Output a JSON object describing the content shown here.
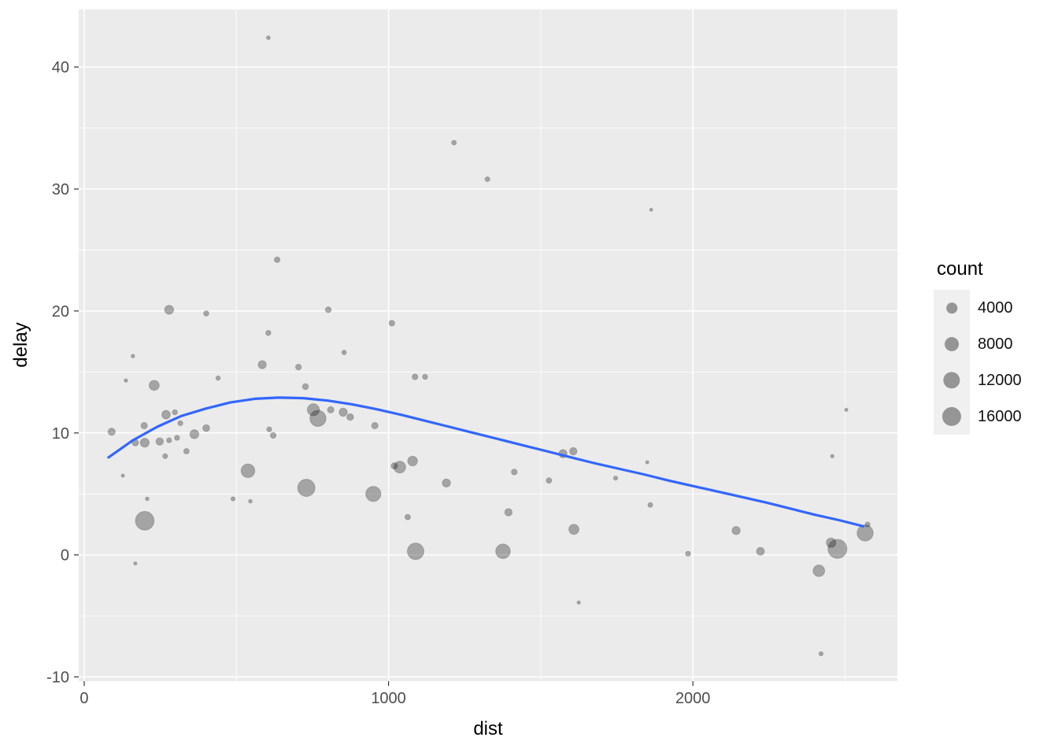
{
  "chart_data": {
    "type": "scatter",
    "title": "",
    "xlabel": "dist",
    "ylabel": "delay",
    "xlim": [
      -18,
      2672
    ],
    "ylim": [
      -10.35,
      44.72
    ],
    "grid": true,
    "x_ticks": [
      {
        "v": 0,
        "label": "0"
      },
      {
        "v": 1000,
        "label": "1000"
      },
      {
        "v": 2000,
        "label": "2000"
      }
    ],
    "y_ticks": [
      {
        "v": -10,
        "label": "-10"
      },
      {
        "v": 0,
        "label": "0"
      },
      {
        "v": 10,
        "label": "10"
      },
      {
        "v": 20,
        "label": "20"
      },
      {
        "v": 30,
        "label": "30"
      },
      {
        "v": 40,
        "label": "40"
      }
    ],
    "x_minor": [
      500,
      1500,
      2500
    ],
    "y_minor": [
      -5,
      5,
      15,
      25,
      35
    ],
    "legend": {
      "title": "count",
      "position": "right",
      "items": [
        {
          "label": "4000",
          "count": 4000
        },
        {
          "label": "8000",
          "count": 8000
        },
        {
          "label": "12000",
          "count": 12000
        },
        {
          "label": "16000",
          "count": 16000
        }
      ]
    },
    "size_scale": {
      "count_min": 25,
      "count_max": 17300,
      "radius_min_px": 1.9,
      "radius_max_px": 12.5
    },
    "points": [
      {
        "dist": 605,
        "delay": 42.4,
        "count": 120
      },
      {
        "dist": 1215,
        "delay": 33.8,
        "count": 320
      },
      {
        "dist": 1325,
        "delay": 30.8,
        "count": 370
      },
      {
        "dist": 1863,
        "delay": 28.3,
        "count": 30
      },
      {
        "dist": 634,
        "delay": 24.2,
        "count": 630
      },
      {
        "dist": 279,
        "delay": 20.1,
        "count": 2600
      },
      {
        "dist": 401,
        "delay": 19.8,
        "count": 500
      },
      {
        "dist": 802,
        "delay": 20.1,
        "count": 700
      },
      {
        "dist": 1011,
        "delay": 19.0,
        "count": 700
      },
      {
        "dist": 605,
        "delay": 18.2,
        "count": 450
      },
      {
        "dist": 854,
        "delay": 16.6,
        "count": 300
      },
      {
        "dist": 160,
        "delay": 16.3,
        "count": 100
      },
      {
        "dist": 585,
        "delay": 15.6,
        "count": 2000
      },
      {
        "dist": 704,
        "delay": 15.4,
        "count": 700
      },
      {
        "dist": 1120,
        "delay": 14.6,
        "count": 450
      },
      {
        "dist": 1087,
        "delay": 14.6,
        "count": 700
      },
      {
        "dist": 137,
        "delay": 14.3,
        "count": 80
      },
      {
        "dist": 440,
        "delay": 14.5,
        "count": 250
      },
      {
        "dist": 230,
        "delay": 13.9,
        "count": 3500
      },
      {
        "dist": 727,
        "delay": 13.8,
        "count": 800
      },
      {
        "dist": 810,
        "delay": 11.9,
        "count": 1000
      },
      {
        "dist": 753,
        "delay": 11.9,
        "count": 5500
      },
      {
        "dist": 768,
        "delay": 11.2,
        "count": 11000
      },
      {
        "dist": 851,
        "delay": 11.7,
        "count": 2000
      },
      {
        "dist": 874,
        "delay": 11.3,
        "count": 1100
      },
      {
        "dist": 269,
        "delay": 11.5,
        "count": 2200
      },
      {
        "dist": 298,
        "delay": 11.7,
        "count": 450
      },
      {
        "dist": 316,
        "delay": 10.8,
        "count": 420
      },
      {
        "dist": 955,
        "delay": 10.6,
        "count": 1000
      },
      {
        "dist": 90,
        "delay": 10.1,
        "count": 1400
      },
      {
        "dist": 197,
        "delay": 10.6,
        "count": 1000
      },
      {
        "dist": 362,
        "delay": 9.9,
        "count": 2500
      },
      {
        "dist": 401,
        "delay": 10.4,
        "count": 1200
      },
      {
        "dist": 608,
        "delay": 10.3,
        "count": 420
      },
      {
        "dist": 621,
        "delay": 9.8,
        "count": 700
      },
      {
        "dist": 199,
        "delay": 9.2,
        "count": 2500
      },
      {
        "dist": 248,
        "delay": 9.3,
        "count": 1500
      },
      {
        "dist": 279,
        "delay": 9.4,
        "count": 420
      },
      {
        "dist": 305,
        "delay": 9.6,
        "count": 460
      },
      {
        "dist": 168,
        "delay": 9.2,
        "count": 1000
      },
      {
        "dist": 336,
        "delay": 8.5,
        "count": 600
      },
      {
        "dist": 266,
        "delay": 8.1,
        "count": 400
      },
      {
        "dist": 2504,
        "delay": 11.9,
        "count": 60
      },
      {
        "dist": 1573,
        "delay": 8.3,
        "count": 2000
      },
      {
        "dist": 1607,
        "delay": 8.5,
        "count": 1500
      },
      {
        "dist": 2458,
        "delay": 8.1,
        "count": 80
      },
      {
        "dist": 1079,
        "delay": 7.7,
        "count": 3200
      },
      {
        "dist": 1037,
        "delay": 7.2,
        "count": 5200
      },
      {
        "dist": 1019,
        "delay": 7.3,
        "count": 1000
      },
      {
        "dist": 538,
        "delay": 6.9,
        "count": 7500
      },
      {
        "dist": 127,
        "delay": 6.5,
        "count": 60
      },
      {
        "dist": 1413,
        "delay": 6.8,
        "count": 700
      },
      {
        "dist": 1190,
        "delay": 5.9,
        "count": 2000
      },
      {
        "dist": 1746,
        "delay": 6.3,
        "count": 200
      },
      {
        "dist": 1850,
        "delay": 7.6,
        "count": 60
      },
      {
        "dist": 730,
        "delay": 5.5,
        "count": 13000
      },
      {
        "dist": 950,
        "delay": 5.0,
        "count": 9500
      },
      {
        "dist": 1527,
        "delay": 6.1,
        "count": 600
      },
      {
        "dist": 489,
        "delay": 4.6,
        "count": 200
      },
      {
        "dist": 546,
        "delay": 4.4,
        "count": 110
      },
      {
        "dist": 207,
        "delay": 4.6,
        "count": 110
      },
      {
        "dist": 1860,
        "delay": 4.1,
        "count": 350
      },
      {
        "dist": 1394,
        "delay": 3.5,
        "count": 1500
      },
      {
        "dist": 1063,
        "delay": 3.1,
        "count": 600
      },
      {
        "dist": 199,
        "delay": 2.8,
        "count": 15500
      },
      {
        "dist": 1609,
        "delay": 2.1,
        "count": 3500
      },
      {
        "dist": 2142,
        "delay": 2.0,
        "count": 2000
      },
      {
        "dist": 2574,
        "delay": 2.5,
        "count": 420
      },
      {
        "dist": 2566,
        "delay": 1.8,
        "count": 11000
      },
      {
        "dist": 1376,
        "delay": 0.3,
        "count": 8700
      },
      {
        "dist": 1089,
        "delay": 0.3,
        "count": 11700
      },
      {
        "dist": 1984,
        "delay": 0.1,
        "count": 420
      },
      {
        "dist": 2222,
        "delay": 0.3,
        "count": 1800
      },
      {
        "dist": 2475,
        "delay": 0.5,
        "count": 16000
      },
      {
        "dist": 2454,
        "delay": 1.0,
        "count": 3000
      },
      {
        "dist": 168,
        "delay": -0.7,
        "count": 60
      },
      {
        "dist": 2414,
        "delay": -1.3,
        "count": 5000
      },
      {
        "dist": 1625,
        "delay": -3.9,
        "count": 60
      },
      {
        "dist": 2421,
        "delay": -8.1,
        "count": 200
      }
    ],
    "smooth": {
      "type": "loess",
      "points": [
        [
          80,
          8.0
        ],
        [
          160,
          9.4
        ],
        [
          240,
          10.5
        ],
        [
          320,
          11.4
        ],
        [
          400,
          12.0
        ],
        [
          480,
          12.5
        ],
        [
          560,
          12.8
        ],
        [
          640,
          12.9
        ],
        [
          720,
          12.85
        ],
        [
          800,
          12.65
        ],
        [
          880,
          12.35
        ],
        [
          960,
          11.95
        ],
        [
          1040,
          11.5
        ],
        [
          1120,
          11.0
        ],
        [
          1200,
          10.5
        ],
        [
          1280,
          10.0
        ],
        [
          1360,
          9.5
        ],
        [
          1440,
          9.0
        ],
        [
          1520,
          8.5
        ],
        [
          1600,
          8.0
        ],
        [
          1680,
          7.5
        ],
        [
          1760,
          7.05
        ],
        [
          1840,
          6.6
        ],
        [
          1920,
          6.1
        ],
        [
          2000,
          5.65
        ],
        [
          2080,
          5.2
        ],
        [
          2160,
          4.75
        ],
        [
          2240,
          4.3
        ],
        [
          2320,
          3.8
        ],
        [
          2400,
          3.3
        ],
        [
          2480,
          2.85
        ],
        [
          2560,
          2.35
        ]
      ]
    }
  },
  "colors": {
    "panel_background": "#ebebeb",
    "grid_major": "#ffffff",
    "grid_minor": "#ffffff",
    "point_fill": "#000000",
    "point_fill_opacity": 0.3,
    "point_stroke_opacity": 0.18,
    "smooth_line": "#3366FF",
    "axis_text": "#4d4d4d",
    "axis_title": "#000000",
    "tick_mark": "#333333",
    "legend_key_background": "#f0f0f0",
    "legend_circle_fill": "rgba(0,0,0,0.38)"
  }
}
